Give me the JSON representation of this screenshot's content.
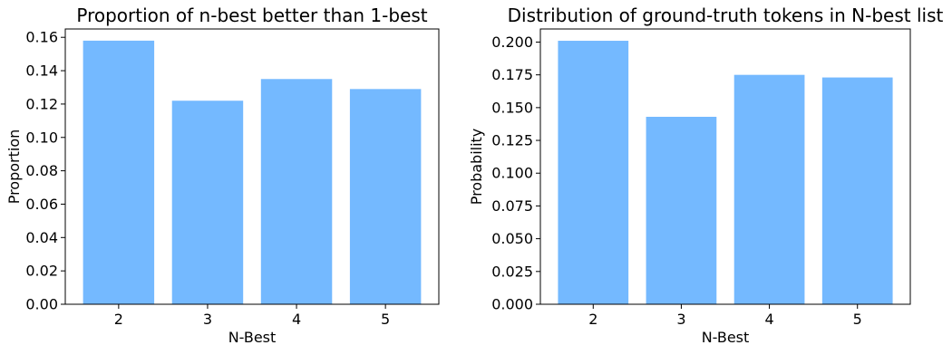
{
  "chart_data": [
    {
      "type": "bar",
      "title": "Proportion of n-best better than 1-best",
      "xlabel": "N-Best",
      "ylabel": "Proportion",
      "categories": [
        "2",
        "3",
        "4",
        "5"
      ],
      "values": [
        0.158,
        0.122,
        0.135,
        0.129
      ],
      "ylim": [
        0,
        0.165
      ],
      "yticks": [
        0.0,
        0.02,
        0.04,
        0.06,
        0.08,
        0.1,
        0.12,
        0.14,
        0.16
      ],
      "ytick_labels": [
        "0.00",
        "0.02",
        "0.04",
        "0.06",
        "0.08",
        "0.10",
        "0.12",
        "0.14",
        "0.16"
      ],
      "bar_color": "#74b9ff",
      "grid": false
    },
    {
      "type": "bar",
      "title": "Distribution of ground-truth tokens in N-best list",
      "xlabel": "N-Best",
      "ylabel": "Probability",
      "categories": [
        "2",
        "3",
        "4",
        "5"
      ],
      "values": [
        0.201,
        0.143,
        0.175,
        0.173
      ],
      "ylim": [
        0,
        0.21
      ],
      "yticks": [
        0.0,
        0.025,
        0.05,
        0.075,
        0.1,
        0.125,
        0.15,
        0.175,
        0.2
      ],
      "ytick_labels": [
        "0.000",
        "0.025",
        "0.050",
        "0.075",
        "0.100",
        "0.125",
        "0.150",
        "0.175",
        "0.200"
      ],
      "bar_color": "#74b9ff",
      "grid": false
    }
  ]
}
